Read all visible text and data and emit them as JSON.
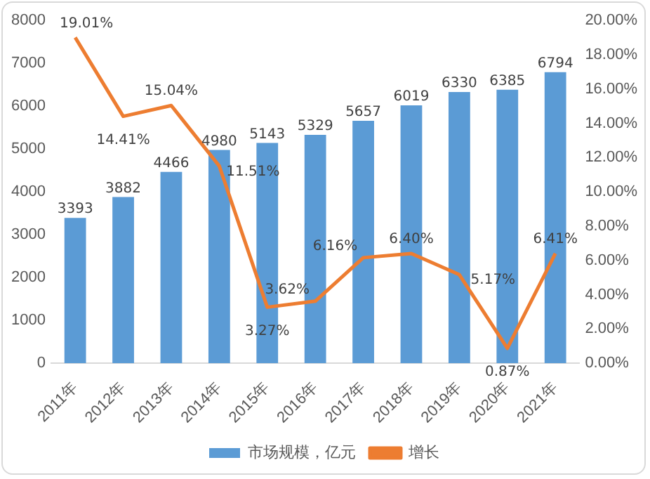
{
  "chart_data": {
    "type": "bar",
    "categories": [
      "2011年",
      "2012年",
      "2013年",
      "2014年",
      "2015年",
      "2016年",
      "2017年",
      "2018年",
      "2019年",
      "2020年",
      "2021年"
    ],
    "series": [
      {
        "name": "市场规模，亿元",
        "color": "#5b9bd5",
        "values": [
          3393,
          3882,
          4466,
          4980,
          5143,
          5329,
          5657,
          6019,
          6330,
          6385,
          6794
        ],
        "value_labels": [
          "3393",
          "3882",
          "4466",
          "4980",
          "5143",
          "5329",
          "5657",
          "6019",
          "6330",
          "6385",
          "6794"
        ]
      },
      {
        "name": "增长",
        "type": "line",
        "axis": "y2",
        "color": "#ed7d31",
        "values": [
          19.01,
          14.41,
          15.04,
          11.51,
          3.27,
          3.62,
          6.16,
          6.4,
          5.17,
          0.87,
          6.41
        ],
        "value_labels": [
          "19.01%",
          "14.41%",
          "15.04%",
          "11.51%",
          "3.27%",
          "3.62%",
          "6.16%",
          "6.40%",
          "5.17%",
          "0.87%",
          "6.41%"
        ]
      }
    ],
    "ylim": [
      0,
      8000
    ],
    "yticks": [
      0,
      1000,
      2000,
      3000,
      4000,
      5000,
      6000,
      7000,
      8000
    ],
    "y2lim": [
      0,
      20
    ],
    "y2ticks": [
      {
        "value": 0,
        "label": "0.00%"
      },
      {
        "value": 2,
        "label": "2.00%"
      },
      {
        "value": 4,
        "label": "4.00%"
      },
      {
        "value": 6,
        "label": "6.00%"
      },
      {
        "value": 8,
        "label": "8.00%"
      },
      {
        "value": 10,
        "label": "10.00%"
      },
      {
        "value": 12,
        "label": "12.00%"
      },
      {
        "value": 14,
        "label": "14.00%"
      },
      {
        "value": 16,
        "label": "16.00%"
      },
      {
        "value": 18,
        "label": "18.00%"
      },
      {
        "value": 20,
        "label": "20.00%"
      }
    ],
    "grid": false,
    "legend": "bottom",
    "marker": "none",
    "line_style": "solid"
  }
}
